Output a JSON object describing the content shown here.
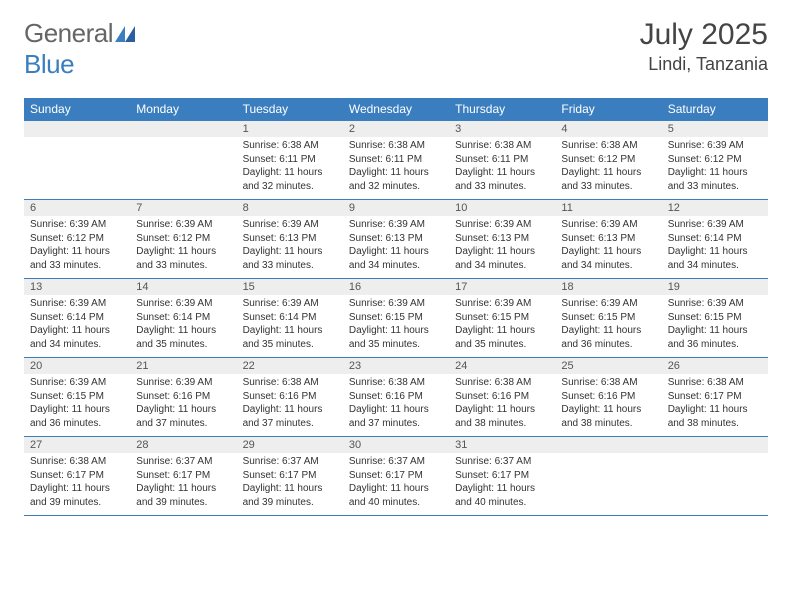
{
  "logo": {
    "text1": "General",
    "text2": "Blue"
  },
  "title": "July 2025",
  "location": "Lindi, Tanzania",
  "colors": {
    "header_bg": "#3a7ebf",
    "header_text": "#ffffff",
    "daynum_bg": "#eeeeee",
    "border": "#3a7ebf",
    "body_text": "#333333",
    "page_bg": "#ffffff"
  },
  "weekdays": [
    "Sunday",
    "Monday",
    "Tuesday",
    "Wednesday",
    "Thursday",
    "Friday",
    "Saturday"
  ],
  "weeks": [
    [
      null,
      null,
      {
        "n": "1",
        "sr": "Sunrise: 6:38 AM",
        "ss": "Sunset: 6:11 PM",
        "dl": "Daylight: 11 hours and 32 minutes."
      },
      {
        "n": "2",
        "sr": "Sunrise: 6:38 AM",
        "ss": "Sunset: 6:11 PM",
        "dl": "Daylight: 11 hours and 32 minutes."
      },
      {
        "n": "3",
        "sr": "Sunrise: 6:38 AM",
        "ss": "Sunset: 6:11 PM",
        "dl": "Daylight: 11 hours and 33 minutes."
      },
      {
        "n": "4",
        "sr": "Sunrise: 6:38 AM",
        "ss": "Sunset: 6:12 PM",
        "dl": "Daylight: 11 hours and 33 minutes."
      },
      {
        "n": "5",
        "sr": "Sunrise: 6:39 AM",
        "ss": "Sunset: 6:12 PM",
        "dl": "Daylight: 11 hours and 33 minutes."
      }
    ],
    [
      {
        "n": "6",
        "sr": "Sunrise: 6:39 AM",
        "ss": "Sunset: 6:12 PM",
        "dl": "Daylight: 11 hours and 33 minutes."
      },
      {
        "n": "7",
        "sr": "Sunrise: 6:39 AM",
        "ss": "Sunset: 6:12 PM",
        "dl": "Daylight: 11 hours and 33 minutes."
      },
      {
        "n": "8",
        "sr": "Sunrise: 6:39 AM",
        "ss": "Sunset: 6:13 PM",
        "dl": "Daylight: 11 hours and 33 minutes."
      },
      {
        "n": "9",
        "sr": "Sunrise: 6:39 AM",
        "ss": "Sunset: 6:13 PM",
        "dl": "Daylight: 11 hours and 34 minutes."
      },
      {
        "n": "10",
        "sr": "Sunrise: 6:39 AM",
        "ss": "Sunset: 6:13 PM",
        "dl": "Daylight: 11 hours and 34 minutes."
      },
      {
        "n": "11",
        "sr": "Sunrise: 6:39 AM",
        "ss": "Sunset: 6:13 PM",
        "dl": "Daylight: 11 hours and 34 minutes."
      },
      {
        "n": "12",
        "sr": "Sunrise: 6:39 AM",
        "ss": "Sunset: 6:14 PM",
        "dl": "Daylight: 11 hours and 34 minutes."
      }
    ],
    [
      {
        "n": "13",
        "sr": "Sunrise: 6:39 AM",
        "ss": "Sunset: 6:14 PM",
        "dl": "Daylight: 11 hours and 34 minutes."
      },
      {
        "n": "14",
        "sr": "Sunrise: 6:39 AM",
        "ss": "Sunset: 6:14 PM",
        "dl": "Daylight: 11 hours and 35 minutes."
      },
      {
        "n": "15",
        "sr": "Sunrise: 6:39 AM",
        "ss": "Sunset: 6:14 PM",
        "dl": "Daylight: 11 hours and 35 minutes."
      },
      {
        "n": "16",
        "sr": "Sunrise: 6:39 AM",
        "ss": "Sunset: 6:15 PM",
        "dl": "Daylight: 11 hours and 35 minutes."
      },
      {
        "n": "17",
        "sr": "Sunrise: 6:39 AM",
        "ss": "Sunset: 6:15 PM",
        "dl": "Daylight: 11 hours and 35 minutes."
      },
      {
        "n": "18",
        "sr": "Sunrise: 6:39 AM",
        "ss": "Sunset: 6:15 PM",
        "dl": "Daylight: 11 hours and 36 minutes."
      },
      {
        "n": "19",
        "sr": "Sunrise: 6:39 AM",
        "ss": "Sunset: 6:15 PM",
        "dl": "Daylight: 11 hours and 36 minutes."
      }
    ],
    [
      {
        "n": "20",
        "sr": "Sunrise: 6:39 AM",
        "ss": "Sunset: 6:15 PM",
        "dl": "Daylight: 11 hours and 36 minutes."
      },
      {
        "n": "21",
        "sr": "Sunrise: 6:39 AM",
        "ss": "Sunset: 6:16 PM",
        "dl": "Daylight: 11 hours and 37 minutes."
      },
      {
        "n": "22",
        "sr": "Sunrise: 6:38 AM",
        "ss": "Sunset: 6:16 PM",
        "dl": "Daylight: 11 hours and 37 minutes."
      },
      {
        "n": "23",
        "sr": "Sunrise: 6:38 AM",
        "ss": "Sunset: 6:16 PM",
        "dl": "Daylight: 11 hours and 37 minutes."
      },
      {
        "n": "24",
        "sr": "Sunrise: 6:38 AM",
        "ss": "Sunset: 6:16 PM",
        "dl": "Daylight: 11 hours and 38 minutes."
      },
      {
        "n": "25",
        "sr": "Sunrise: 6:38 AM",
        "ss": "Sunset: 6:16 PM",
        "dl": "Daylight: 11 hours and 38 minutes."
      },
      {
        "n": "26",
        "sr": "Sunrise: 6:38 AM",
        "ss": "Sunset: 6:17 PM",
        "dl": "Daylight: 11 hours and 38 minutes."
      }
    ],
    [
      {
        "n": "27",
        "sr": "Sunrise: 6:38 AM",
        "ss": "Sunset: 6:17 PM",
        "dl": "Daylight: 11 hours and 39 minutes."
      },
      {
        "n": "28",
        "sr": "Sunrise: 6:37 AM",
        "ss": "Sunset: 6:17 PM",
        "dl": "Daylight: 11 hours and 39 minutes."
      },
      {
        "n": "29",
        "sr": "Sunrise: 6:37 AM",
        "ss": "Sunset: 6:17 PM",
        "dl": "Daylight: 11 hours and 39 minutes."
      },
      {
        "n": "30",
        "sr": "Sunrise: 6:37 AM",
        "ss": "Sunset: 6:17 PM",
        "dl": "Daylight: 11 hours and 40 minutes."
      },
      {
        "n": "31",
        "sr": "Sunrise: 6:37 AM",
        "ss": "Sunset: 6:17 PM",
        "dl": "Daylight: 11 hours and 40 minutes."
      },
      null,
      null
    ]
  ]
}
